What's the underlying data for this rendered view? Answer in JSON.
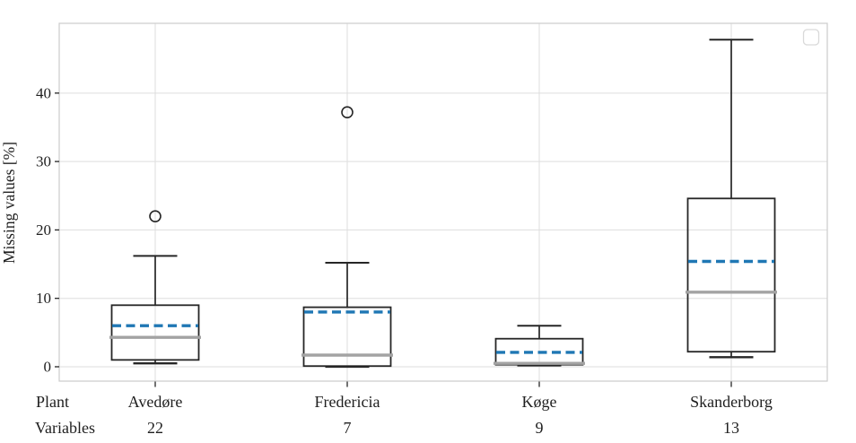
{
  "chart_data": {
    "type": "boxplot",
    "title": "",
    "ylabel": "Missing values [%]",
    "ylim": [
      -2.1,
      50.2
    ],
    "yticks": [
      0,
      10,
      20,
      30,
      40
    ],
    "grid": true,
    "legend": {
      "position": "upper-right",
      "entries": []
    },
    "categories": [
      "Avedøre",
      "Fredericia",
      "Køge",
      "Skanderborg"
    ],
    "x_rows": [
      {
        "label": "Plant",
        "values": [
          "Avedøre",
          "Fredericia",
          "Køge",
          "Skanderborg"
        ]
      },
      {
        "label": "Variables",
        "values": [
          "22",
          "7",
          "9",
          "13"
        ]
      }
    ],
    "series": [
      {
        "category": "Avedøre",
        "variables": 22,
        "min": 0.5,
        "q1": 1.0,
        "median": 4.3,
        "mean": 6.0,
        "q3": 9.0,
        "max": 16.2,
        "outliers": [
          22.0
        ]
      },
      {
        "category": "Fredericia",
        "variables": 7,
        "min": 0.0,
        "q1": 0.1,
        "median": 1.7,
        "mean": 8.0,
        "q3": 8.7,
        "max": 15.2,
        "outliers": [
          37.2
        ]
      },
      {
        "category": "Køge",
        "variables": 9,
        "min": 0.2,
        "q1": 0.3,
        "median": 0.5,
        "mean": 2.1,
        "q3": 4.1,
        "max": 6.0,
        "outliers": []
      },
      {
        "category": "Skanderborg",
        "variables": 13,
        "min": 1.4,
        "q1": 2.2,
        "median": 10.9,
        "mean": 15.4,
        "q3": 24.6,
        "max": 47.8,
        "outliers": []
      }
    ],
    "colors": {
      "box_edge": "#262626",
      "median": "#a3a3a3",
      "mean": "#1f77b4",
      "grid": "#dedede",
      "frame": "#cccccc",
      "tick": "#262626",
      "text": "#1f1f1f",
      "background": "#ffffff",
      "legend_border": "#d9d9d9"
    }
  }
}
